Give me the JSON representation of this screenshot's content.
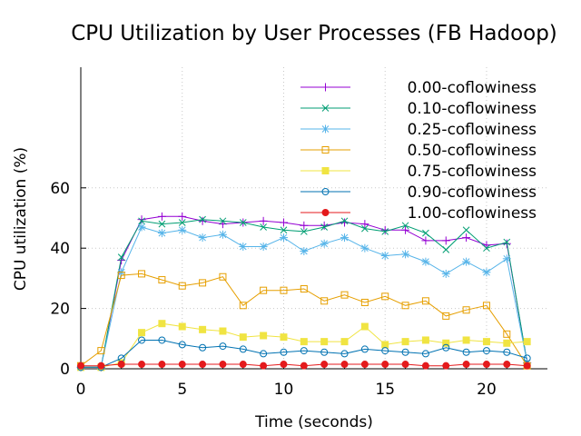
{
  "chart_data": {
    "type": "line",
    "title": "CPU Utilization by User Processes (FB Hadoop)",
    "xlabel": "Time (seconds)",
    "ylabel": "CPU utilization (%)",
    "xlim": [
      0,
      23
    ],
    "ylim": [
      0,
      100
    ],
    "xticks": [
      0,
      5,
      10,
      15,
      20
    ],
    "yticks": [
      0,
      20,
      40,
      60
    ],
    "grid": true,
    "legend_position": "top-right",
    "x": [
      0,
      1,
      2,
      3,
      4,
      5,
      6,
      7,
      8,
      9,
      10,
      11,
      12,
      13,
      14,
      15,
      16,
      17,
      18,
      19,
      20,
      21,
      22
    ],
    "series": [
      {
        "name": "0.00-coflowiness",
        "color": "#9400d3",
        "marker": "plus",
        "values": [
          0.5,
          0.5,
          36,
          49.5,
          50.5,
          50.5,
          49,
          48,
          48.5,
          49,
          48.5,
          47.5,
          47.5,
          48.5,
          48,
          46,
          46,
          42.5,
          42.5,
          43.5,
          41,
          41.5,
          2
        ]
      },
      {
        "name": "0.10-coflowiness",
        "color": "#009e73",
        "marker": "cross",
        "values": [
          0.5,
          0.5,
          37,
          49,
          48,
          48.5,
          49.5,
          49,
          48.5,
          47,
          46,
          45.5,
          47,
          49,
          46.5,
          45.5,
          47.5,
          45,
          39.5,
          46,
          40,
          42,
          2
        ]
      },
      {
        "name": "0.25-coflowiness",
        "color": "#56b4e9",
        "marker": "star",
        "values": [
          0.5,
          0.5,
          32,
          47,
          45,
          46,
          43.5,
          44.5,
          40.5,
          40.5,
          43.5,
          39,
          41.5,
          43.5,
          40,
          37.5,
          38,
          35.5,
          31.5,
          35.5,
          32,
          36.5,
          2
        ]
      },
      {
        "name": "0.50-coflowiness",
        "color": "#e69f00",
        "marker": "square-open",
        "values": [
          1,
          6,
          31,
          31.5,
          29.5,
          27.5,
          28.5,
          30.5,
          21,
          26,
          26,
          26.5,
          22.5,
          24.5,
          22,
          24,
          21,
          22.5,
          17.5,
          19.5,
          21,
          11.5,
          1
        ]
      },
      {
        "name": "0.75-coflowiness",
        "color": "#f0e442",
        "marker": "square-filled",
        "values": [
          0.5,
          0.5,
          2,
          12,
          15,
          14,
          13,
          12.5,
          10.5,
          11,
          10.5,
          9,
          9,
          9,
          14,
          8,
          9,
          9.5,
          8.5,
          9.5,
          9,
          8.5,
          9
        ]
      },
      {
        "name": "0.90-coflowiness",
        "color": "#0072b2",
        "marker": "circle-open",
        "values": [
          0.5,
          0.5,
          3.5,
          9.5,
          9.5,
          8,
          7,
          7.5,
          6.5,
          5,
          5.5,
          6,
          5.5,
          5,
          6.5,
          6,
          5.5,
          5,
          7,
          5.5,
          6,
          5.5,
          3.5
        ]
      },
      {
        "name": "1.00-coflowiness",
        "color": "#e41a1c",
        "marker": "circle-filled",
        "values": [
          1,
          1,
          1.5,
          1.5,
          1.5,
          1.5,
          1.5,
          1.5,
          1.5,
          1,
          1.5,
          1,
          1.5,
          1.5,
          1.5,
          1.5,
          1.5,
          1,
          1,
          1.5,
          1.5,
          1.5,
          1
        ]
      }
    ]
  }
}
